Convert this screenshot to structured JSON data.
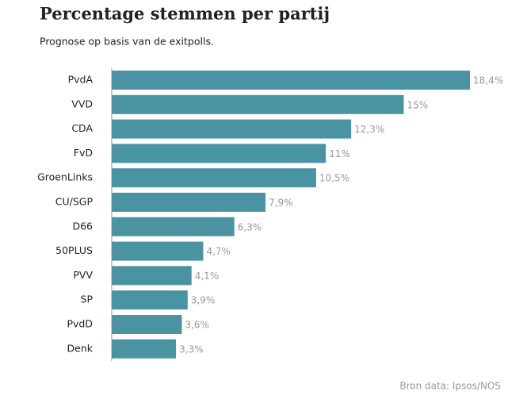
{
  "chart_data": {
    "type": "bar",
    "orientation": "horizontal",
    "title": "Percentage stemmen per partij",
    "subtitle": "Prognose op basis van de exitpolls.",
    "source": "Bron data: Ipsos/NOS",
    "categories": [
      "PvdA",
      "VVD",
      "CDA",
      "FvD",
      "GroenLinks",
      "CU/SGP",
      "D66",
      "50PLUS",
      "PVV",
      "SP",
      "PvdD",
      "Denk"
    ],
    "values": [
      18.4,
      15,
      12.3,
      11,
      10.5,
      7.9,
      6.3,
      4.7,
      4.1,
      3.9,
      3.6,
      3.3
    ],
    "value_labels": [
      "18,4%",
      "15%",
      "12,3%",
      "11%",
      "10,5%",
      "7,9%",
      "6,3%",
      "4,7%",
      "4,1%",
      "3,9%",
      "3,6%",
      "3,3%"
    ],
    "color": "#4a93a3"
  }
}
